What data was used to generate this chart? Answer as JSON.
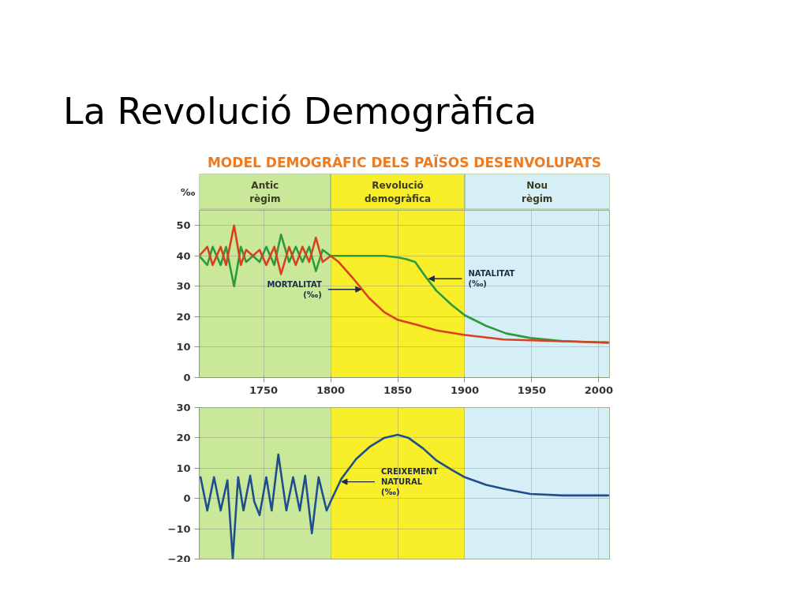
{
  "chart_data": [
    {
      "type": "line",
      "title": "La Revolució Demogràfica",
      "subtitle": "MODEL DEMOGRÀFIC DELS PAÏSOS DESENVOLUPATS",
      "ylabel": "‰",
      "xlim": [
        1702,
        2008
      ],
      "xticks": [
        1750,
        1800,
        1850,
        1900,
        1950,
        2000
      ],
      "ylim": [
        0,
        55
      ],
      "yticks": [
        0,
        10,
        20,
        30,
        40,
        50
      ],
      "grid": true,
      "bands": [
        {
          "axis": "x",
          "from": 1702,
          "to": 1800,
          "label": "Antic règim",
          "color": "#c9e89a"
        },
        {
          "axis": "x",
          "from": 1800,
          "to": 1900,
          "label": "Revolució demogràfica",
          "color": "#f9ee2a"
        },
        {
          "axis": "x",
          "from": 1900,
          "to": 2008,
          "label": "Nou règim",
          "color": "#d6eff7"
        }
      ],
      "series": [
        {
          "color": "#2f9a3c",
          "x": [
            1702,
            1708,
            1712,
            1718,
            1722,
            1728,
            1733,
            1737,
            1742,
            1747,
            1752,
            1758,
            1763,
            1769,
            1774,
            1779,
            1784,
            1789,
            1794,
            1800,
            1820,
            1840,
            1850,
            1856,
            1863,
            1871,
            1879,
            1890,
            1900,
            1916,
            1931,
            1949,
            1973,
            2007
          ],
          "values": [
            40,
            37,
            43,
            37,
            43,
            30,
            43,
            38,
            40,
            38,
            43,
            37,
            47,
            38,
            43,
            38,
            43,
            35,
            42,
            40,
            40,
            40,
            39.5,
            39,
            38,
            33,
            28.5,
            24,
            20.5,
            17,
            14.5,
            13,
            12,
            11.5
          ]
        },
        {
          "color": "#d8401f",
          "x": [
            1702,
            1708,
            1712,
            1718,
            1722,
            1728,
            1733,
            1737,
            1742,
            1747,
            1752,
            1758,
            1763,
            1769,
            1774,
            1779,
            1784,
            1789,
            1794,
            1800,
            1806,
            1816,
            1829,
            1840,
            1850,
            1863,
            1879,
            1900,
            1929,
            1968,
            2007
          ],
          "values": [
            40,
            43,
            37,
            43,
            37,
            50,
            37,
            42,
            40,
            42,
            37,
            43,
            34,
            43,
            37,
            43,
            38,
            46,
            38,
            40,
            38,
            33,
            26,
            21.5,
            19,
            17.5,
            15.5,
            14,
            12.5,
            12,
            11.5
          ]
        }
      ],
      "annotations": [
        {
          "text": "MORTALITAT (‰)",
          "x": 1824,
          "y": 29
        },
        {
          "text": "NATALITAT (‰)",
          "x": 1872,
          "y": 32.5
        }
      ]
    },
    {
      "type": "line",
      "xlim": [
        1702,
        2008
      ],
      "xticks": [
        1750,
        1800,
        1850,
        1900,
        1950,
        2000
      ],
      "ylim": [
        -20,
        30
      ],
      "yticks": [
        -20,
        -10,
        0,
        10,
        20,
        30
      ],
      "grid": true,
      "tick_labels": "y",
      "bands": [
        {
          "axis": "x",
          "from": 1702,
          "to": 1800,
          "color": "#c9e89a"
        },
        {
          "axis": "x",
          "from": 1800,
          "to": 1900,
          "color": "#f9ee2a"
        },
        {
          "axis": "x",
          "from": 1900,
          "to": 2008,
          "color": "#d6eff7"
        }
      ],
      "series": [
        {
          "color": "#1f4e8c",
          "x": [
            1703,
            1708,
            1713,
            1718,
            1723,
            1727,
            1731,
            1735,
            1740,
            1743,
            1747,
            1752,
            1756,
            1761,
            1767,
            1772,
            1777,
            1781,
            1786,
            1791,
            1797,
            1800,
            1808,
            1819,
            1829,
            1840,
            1850,
            1858,
            1869,
            1879,
            1890,
            1900,
            1916,
            1931,
            1949,
            1973,
            2007
          ],
          "values": [
            7,
            -4,
            7,
            -4,
            6,
            -20,
            7,
            -4,
            7.5,
            -1,
            -5.5,
            7,
            -4,
            14.5,
            -4,
            7,
            -4,
            7.5,
            -11.5,
            7,
            -4,
            -1,
            6.5,
            13,
            17,
            20,
            21,
            20,
            16.5,
            12.5,
            9.5,
            7,
            4.5,
            3,
            1.5,
            1,
            1
          ]
        }
      ],
      "annotations": [
        {
          "text": "CREIXEMENT NATURAL (‰)",
          "x": 1807,
          "y": 5.5
        }
      ]
    }
  ]
}
